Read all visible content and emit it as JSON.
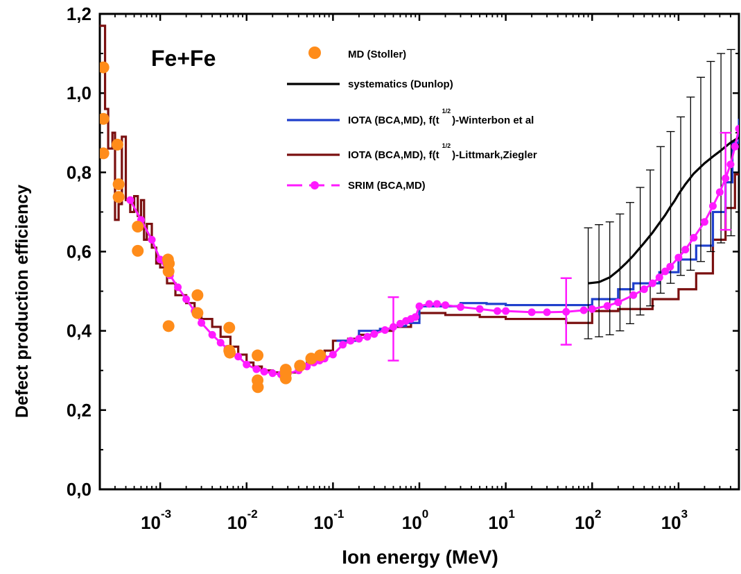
{
  "chart_data": {
    "type": "line",
    "xscale": "log",
    "xlim": [
      0.0002,
      5000
    ],
    "ylim": [
      0.0,
      1.2
    ],
    "xlabel": "Ion energy (MeV)",
    "ylabel": "Defect production efficiency",
    "annotation": "Fe+Fe",
    "legend_position": "top-center",
    "grid": false,
    "xticks": [
      {
        "value": 0.001,
        "base": "10",
        "exp": "-3"
      },
      {
        "value": 0.01,
        "base": "10",
        "exp": "-2"
      },
      {
        "value": 0.1,
        "base": "10",
        "exp": "-1"
      },
      {
        "value": 1,
        "base": "10",
        "exp": "0"
      },
      {
        "value": 10,
        "base": "10",
        "exp": "1"
      },
      {
        "value": 100,
        "base": "10",
        "exp": "2"
      },
      {
        "value": 1000,
        "base": "10",
        "exp": "3"
      }
    ],
    "yticks": [
      {
        "value": 0.0,
        "label": "0,0"
      },
      {
        "value": 0.2,
        "label": "0,2"
      },
      {
        "value": 0.4,
        "label": "0,4"
      },
      {
        "value": 0.6,
        "label": "0,6"
      },
      {
        "value": 0.8,
        "label": "0,8"
      },
      {
        "value": 1.0,
        "label": "1,0"
      },
      {
        "value": 1.2,
        "label": "1,2"
      }
    ],
    "series": [
      {
        "name": "MD (Stoller)",
        "kind": "scatter",
        "color": "#ff8c1a",
        "x": [
          0.00022,
          0.00022,
          0.00022,
          0.00032,
          0.00033,
          0.00033,
          0.00055,
          0.00055,
          0.00123,
          0.00125,
          0.00125,
          0.00126,
          0.0027,
          0.0027,
          0.0063,
          0.0063,
          0.0064,
          0.0134,
          0.0134,
          0.0135,
          0.0284,
          0.0284,
          0.0284,
          0.0415,
          0.056,
          0.071
        ],
        "y": [
          1.065,
          0.935,
          0.848,
          0.87,
          0.77,
          0.738,
          0.663,
          0.602,
          0.58,
          0.55,
          0.412,
          0.57,
          0.49,
          0.445,
          0.408,
          0.35,
          0.345,
          0.338,
          0.275,
          0.258,
          0.302,
          0.293,
          0.28,
          0.312,
          0.33,
          0.338
        ]
      },
      {
        "name": "systematics (Dunlop)",
        "kind": "line",
        "color": "#000000",
        "x": [
          90,
          120,
          160,
          200,
          250,
          300,
          400,
          500,
          600,
          700,
          800,
          900,
          1000,
          1200,
          1500,
          2000,
          2500,
          3000,
          3500,
          4000,
          4500,
          5000
        ],
        "y": [
          0.52,
          0.523,
          0.535,
          0.552,
          0.572,
          0.59,
          0.622,
          0.648,
          0.672,
          0.692,
          0.712,
          0.728,
          0.745,
          0.77,
          0.797,
          0.823,
          0.84,
          0.853,
          0.865,
          0.875,
          0.882,
          0.888
        ],
        "error_bars": {
          "x": [
            90,
            120,
            160,
            210,
            275,
            360,
            470,
            620,
            810,
            1060,
            1380,
            1810,
            2360,
            3100,
            4050
          ],
          "lo": [
            0.38,
            0.385,
            0.39,
            0.4,
            0.418,
            0.44,
            0.463,
            0.495,
            0.52,
            0.54,
            0.553,
            0.575,
            0.6,
            0.622,
            0.64
          ],
          "hi": [
            0.66,
            0.668,
            0.675,
            0.695,
            0.724,
            0.762,
            0.806,
            0.865,
            0.903,
            0.94,
            0.99,
            1.04,
            1.08,
            1.1,
            1.11
          ]
        }
      },
      {
        "name": "IOTA (BCA,MD), f(t^{1/2})-Winterbon et al",
        "label_main": "IOTA (BCA,MD), f(t",
        "label_sup": "1/2",
        "label_tail": ")-Winterbon et al",
        "kind": "step",
        "color": "#1f3fcc",
        "x": [
          0.11,
          0.2,
          0.35,
          0.5,
          0.7,
          1.0,
          3.0,
          6.0,
          10.0,
          50.0,
          100,
          200,
          300,
          600,
          1000,
          1600,
          2500,
          3500,
          4200,
          5000
        ],
        "y": [
          0.375,
          0.4,
          0.405,
          0.412,
          0.42,
          0.462,
          0.47,
          0.468,
          0.465,
          0.465,
          0.48,
          0.505,
          0.52,
          0.548,
          0.58,
          0.615,
          0.7,
          0.775,
          0.875,
          0.935
        ]
      },
      {
        "name": "IOTA (BCA,MD), f(t^{1/2})-Littmark,Ziegler",
        "label_main": "IOTA (BCA,MD), f(t",
        "label_sup": "1/2",
        "label_tail": ")-Littmark,Ziegler",
        "kind": "step",
        "color": "#7a1010",
        "x": [
          0.0002,
          0.00023,
          0.00025,
          0.00028,
          0.0003,
          0.00033,
          0.00036,
          0.0004,
          0.00045,
          0.0005,
          0.00055,
          0.0006,
          0.00065,
          0.0007,
          0.0008,
          0.0009,
          0.001,
          0.0012,
          0.0015,
          0.002,
          0.0025,
          0.003,
          0.004,
          0.005,
          0.0065,
          0.008,
          0.01,
          0.012,
          0.015,
          0.02,
          0.025,
          0.03,
          0.04,
          0.05,
          0.06,
          0.08,
          0.1,
          0.15,
          0.2,
          0.3,
          0.5,
          0.8,
          1.0,
          2.0,
          5.0,
          10.0,
          50.0,
          100,
          200,
          500,
          1000,
          1600,
          2500,
          3500,
          4500
        ],
        "y": [
          1.17,
          0.96,
          0.86,
          0.9,
          0.68,
          0.72,
          0.89,
          0.73,
          0.7,
          0.74,
          0.69,
          0.73,
          0.63,
          0.67,
          0.61,
          0.57,
          0.56,
          0.52,
          0.49,
          0.47,
          0.45,
          0.43,
          0.41,
          0.385,
          0.36,
          0.34,
          0.32,
          0.31,
          0.3,
          0.295,
          0.29,
          0.295,
          0.305,
          0.32,
          0.335,
          0.35,
          0.375,
          0.38,
          0.39,
          0.4,
          0.41,
          0.43,
          0.445,
          0.44,
          0.435,
          0.43,
          0.42,
          0.45,
          0.455,
          0.48,
          0.505,
          0.545,
          0.63,
          0.71,
          0.795
        ]
      },
      {
        "name": "SRIM (BCA,MD)",
        "kind": "line+markers",
        "color": "#ff1aff",
        "x": [
          0.00045,
          0.0006,
          0.0008,
          0.001,
          0.0013,
          0.0016,
          0.002,
          0.0025,
          0.003,
          0.004,
          0.005,
          0.006,
          0.008,
          0.01,
          0.013,
          0.016,
          0.02,
          0.025,
          0.03,
          0.04,
          0.05,
          0.06,
          0.07,
          0.08,
          0.1,
          0.13,
          0.16,
          0.2,
          0.25,
          0.3,
          0.4,
          0.5,
          0.6,
          0.7,
          0.8,
          0.9,
          1.0,
          1.3,
          1.6,
          2.0,
          3.0,
          5.0,
          8.0,
          10.0,
          20.0,
          30.0,
          50.0,
          80.0,
          100,
          150,
          200,
          300,
          400,
          500,
          600,
          700,
          800,
          1000,
          1200,
          1500,
          2000,
          2500,
          3000,
          3500,
          4000,
          4500,
          5000
        ],
        "y": [
          0.73,
          0.68,
          0.63,
          0.58,
          0.54,
          0.51,
          0.48,
          0.45,
          0.42,
          0.39,
          0.37,
          0.355,
          0.335,
          0.315,
          0.303,
          0.297,
          0.293,
          0.29,
          0.292,
          0.3,
          0.31,
          0.32,
          0.325,
          0.33,
          0.34,
          0.365,
          0.375,
          0.38,
          0.385,
          0.392,
          0.402,
          0.41,
          0.418,
          0.425,
          0.43,
          0.435,
          0.462,
          0.468,
          0.468,
          0.465,
          0.46,
          0.455,
          0.45,
          0.45,
          0.447,
          0.447,
          0.448,
          0.452,
          0.455,
          0.463,
          0.472,
          0.49,
          0.505,
          0.52,
          0.535,
          0.55,
          0.562,
          0.585,
          0.605,
          0.635,
          0.675,
          0.715,
          0.75,
          0.785,
          0.82,
          0.865,
          0.91
        ],
        "error_bars": {
          "x": [
            0.5,
            50,
            3500
          ],
          "lo": [
            0.325,
            0.365,
            0.655
          ],
          "hi": [
            0.485,
            0.533,
            0.9
          ]
        }
      }
    ]
  }
}
